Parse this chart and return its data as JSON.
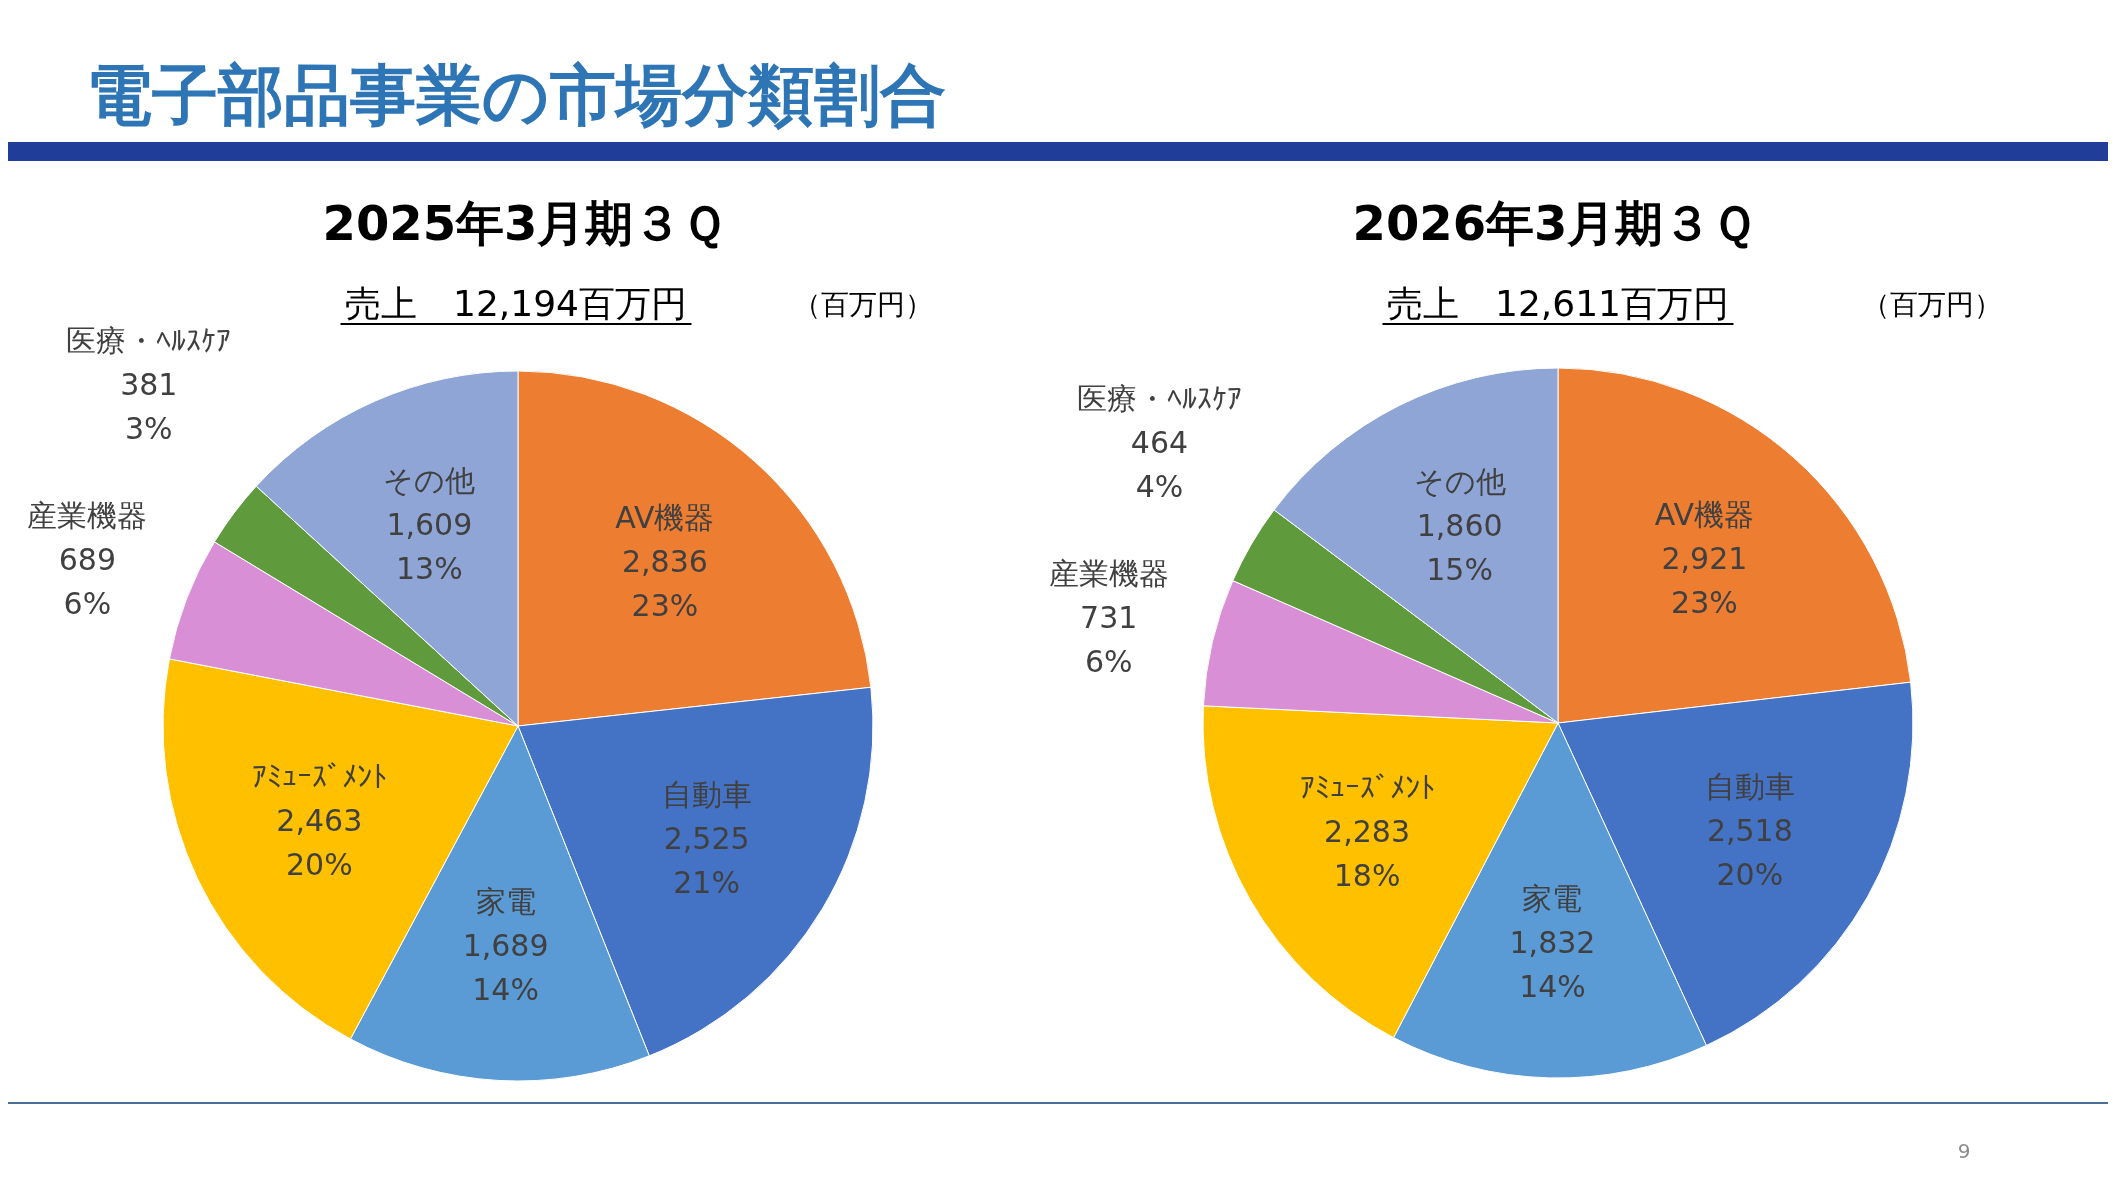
{
  "chart_data": [
    {
      "type": "pie",
      "title": "2025年3月期３Ｑ",
      "subtitle": "売上　12,194百万円",
      "annotations": [
        "電子部品事業の市場分類割合",
        "（百万円）",
        "9"
      ],
      "categories": [
        "AV機器",
        "自動車",
        "家電",
        "ｱﾐｭｰｽﾞﾒﾝﾄ",
        "産業機器",
        "医療・ﾍﾙｽｹｱ",
        "その他"
      ],
      "values": [
        2836,
        2525,
        1689,
        2463,
        689,
        381,
        1609
      ],
      "value_labels": [
        "2,836\n23%",
        "2,525\n21%",
        "1,689\n14%",
        "2,463\n20%",
        "689\n6%",
        "381\n3%",
        "1,609\n13%"
      ],
      "colors": [
        "#ed7d31",
        "#4472c4",
        "#5b9bd5",
        "#ffc000",
        "#d98fd6",
        "#5f9a3c",
        "#8fa5d6"
      ]
    },
    {
      "type": "pie",
      "title": "2026年3月期３Ｑ",
      "subtitle": "売上　12,611百万円",
      "annotations": [
        "（百万円）"
      ],
      "categories": [
        "AV機器",
        "自動車",
        "家電",
        "ｱﾐｭｰｽﾞﾒﾝﾄ",
        "産業機器",
        "医療・ﾍﾙｽｹｱ",
        "その他"
      ],
      "values": [
        2921,
        2518,
        1832,
        2283,
        731,
        464,
        1860
      ],
      "value_labels": [
        "2,921\n23%",
        "2,518\n20%",
        "1,832\n14%",
        "2,283\n18%",
        "731\n6%",
        "464\n4%",
        "1,860\n15%"
      ],
      "colors": [
        "#ed7d31",
        "#4472c4",
        "#5b9bd5",
        "#ffc000",
        "#d98fd6",
        "#5f9a3c",
        "#8fa5d6"
      ]
    }
  ]
}
